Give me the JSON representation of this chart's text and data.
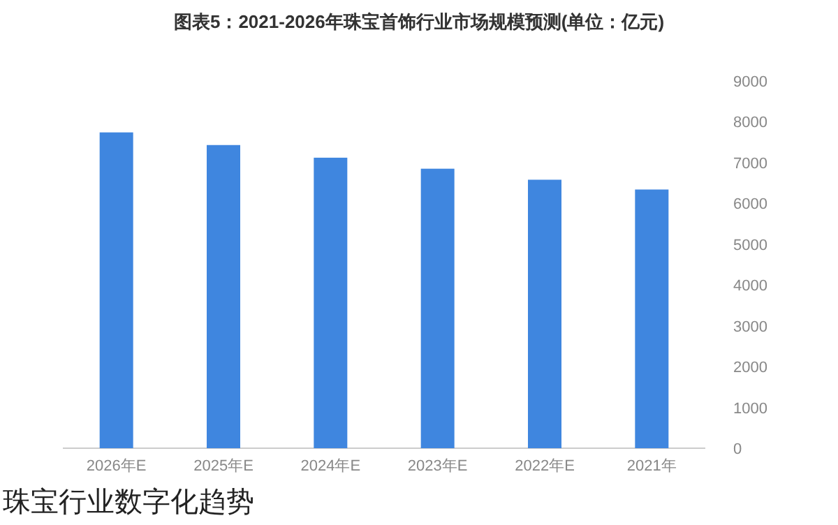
{
  "chart_data": {
    "type": "bar",
    "title": "图表5：2021-2026年珠宝首饰行业市场规模预测(单位：亿元)",
    "categories": [
      "2026年E",
      "2025年E",
      "2024年E",
      "2023年E",
      "2022年E",
      "2021年"
    ],
    "values": [
      7740,
      7430,
      7120,
      6850,
      6580,
      6340
    ],
    "color": "#3f86df",
    "ylim": [
      0,
      9000
    ],
    "yticks": [
      0,
      1000,
      2000,
      3000,
      4000,
      5000,
      6000,
      7000,
      8000,
      9000
    ],
    "grid": false,
    "annotations": [
      "珠宝行业数字化趋势"
    ]
  }
}
